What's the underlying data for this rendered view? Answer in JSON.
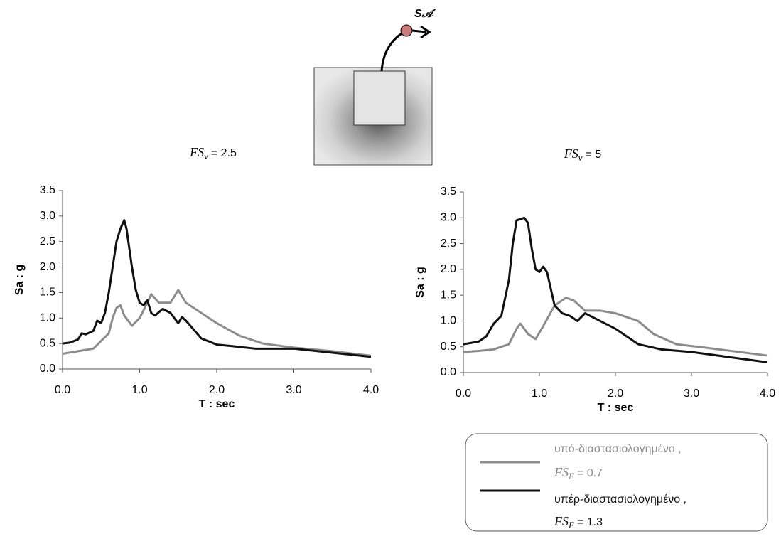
{
  "diagram_label": "S𝒜",
  "chart_data": [
    {
      "type": "line",
      "title": {
        "main": "FS",
        "sub": "v",
        "rest": "= 2.5"
      },
      "xlabel": "T : sec",
      "ylabel": "Sa : g",
      "xlim": [
        0,
        4
      ],
      "ylim": [
        0,
        3.5
      ],
      "grid": false,
      "xticks": [
        {
          "value": 0,
          "label": "0.0"
        },
        {
          "value": 1,
          "label": "1.0"
        },
        {
          "value": 2,
          "label": "2.0"
        },
        {
          "value": 3,
          "label": "3.0"
        },
        {
          "value": 4,
          "label": "4.0"
        }
      ],
      "yticks": [
        {
          "value": 0,
          "label": "0.0"
        },
        0.5,
        {
          "value": 1,
          "label": "1.0"
        },
        1.5,
        {
          "value": 2,
          "label": "2.0"
        },
        2.5,
        {
          "value": 3,
          "label": "3.0"
        },
        3.5
      ],
      "series": [
        {
          "name": "υπό-διαστασιολογημένο ,",
          "fs": {
            "main": "FS",
            "sub": "E",
            "rest": "= 0.7"
          },
          "color": "#8c8c8c",
          "x": [
            0,
            0.2,
            0.4,
            0.5,
            0.6,
            0.65,
            0.7,
            0.75,
            0.8,
            0.9,
            1.0,
            1.1,
            1.15,
            1.25,
            1.4,
            1.5,
            1.6,
            1.8,
            2.0,
            2.3,
            2.6,
            3.0,
            3.5,
            4.0
          ],
          "values": [
            0.3,
            0.35,
            0.4,
            0.55,
            0.7,
            1.0,
            1.2,
            1.25,
            1.05,
            0.85,
            1.0,
            1.3,
            1.47,
            1.3,
            1.3,
            1.55,
            1.3,
            1.1,
            0.9,
            0.65,
            0.5,
            0.42,
            0.35,
            0.26
          ]
        },
        {
          "name": "υπέρ-διαστασιολογημένο ,",
          "fs": {
            "main": "FS",
            "sub": "E",
            "rest": "= 1.3"
          },
          "color": "#111111",
          "x": [
            0,
            0.1,
            0.2,
            0.25,
            0.3,
            0.4,
            0.45,
            0.5,
            0.55,
            0.6,
            0.65,
            0.7,
            0.75,
            0.8,
            0.83,
            0.9,
            0.95,
            1.0,
            1.05,
            1.1,
            1.15,
            1.2,
            1.3,
            1.4,
            1.5,
            1.55,
            1.6,
            1.8,
            2.0,
            2.2,
            2.5,
            3.0,
            3.5,
            4.0
          ],
          "values": [
            0.5,
            0.52,
            0.58,
            0.7,
            0.68,
            0.75,
            0.95,
            0.9,
            1.1,
            1.5,
            2.0,
            2.5,
            2.75,
            2.92,
            2.75,
            2.0,
            1.55,
            1.3,
            1.25,
            1.35,
            1.1,
            1.05,
            1.18,
            1.1,
            0.9,
            1.02,
            0.95,
            0.6,
            0.48,
            0.45,
            0.4,
            0.4,
            0.32,
            0.24
          ]
        }
      ]
    },
    {
      "type": "line",
      "title": {
        "main": "FS",
        "sub": "v",
        "rest": "= 5"
      },
      "xlabel": "T : sec",
      "ylabel": "Sa : g",
      "xlim": [
        0,
        4
      ],
      "ylim": [
        0,
        3.5
      ],
      "grid": false,
      "xticks": [
        {
          "value": 0,
          "label": "0.0"
        },
        {
          "value": 1,
          "label": "1.0"
        },
        {
          "value": 2,
          "label": "2.0"
        },
        {
          "value": 3,
          "label": "3.0"
        },
        {
          "value": 4,
          "label": "4.0"
        }
      ],
      "yticks": [
        {
          "value": 0,
          "label": "0.0"
        },
        0.5,
        {
          "value": 1,
          "label": "1.0"
        },
        1.5,
        {
          "value": 2,
          "label": "2.0"
        },
        2.5,
        {
          "value": 3,
          "label": "3.0"
        },
        3.5
      ],
      "series": [
        {
          "color": "#8c8c8c",
          "x": [
            0,
            0.2,
            0.4,
            0.6,
            0.7,
            0.75,
            0.85,
            0.95,
            1.05,
            1.2,
            1.35,
            1.45,
            1.6,
            1.8,
            2.0,
            2.2,
            2.3,
            2.5,
            2.8,
            3.2,
            4.0
          ],
          "values": [
            0.4,
            0.42,
            0.45,
            0.55,
            0.85,
            0.95,
            0.75,
            0.65,
            0.9,
            1.3,
            1.45,
            1.4,
            1.2,
            1.2,
            1.15,
            1.05,
            1.0,
            0.75,
            0.55,
            0.48,
            0.33
          ]
        },
        {
          "color": "#111111",
          "x": [
            0,
            0.2,
            0.3,
            0.4,
            0.5,
            0.6,
            0.65,
            0.7,
            0.8,
            0.85,
            0.9,
            0.95,
            1.0,
            1.05,
            1.1,
            1.2,
            1.3,
            1.4,
            1.5,
            1.6,
            1.8,
            2.0,
            2.3,
            2.6,
            3.0,
            3.5,
            4.0
          ],
          "values": [
            0.55,
            0.6,
            0.7,
            0.95,
            1.1,
            1.8,
            2.5,
            2.95,
            3.0,
            2.9,
            2.4,
            2.0,
            1.95,
            2.05,
            1.95,
            1.3,
            1.15,
            1.1,
            1.0,
            1.15,
            1.0,
            0.85,
            0.55,
            0.45,
            0.4,
            0.3,
            0.2
          ]
        }
      ]
    }
  ]
}
